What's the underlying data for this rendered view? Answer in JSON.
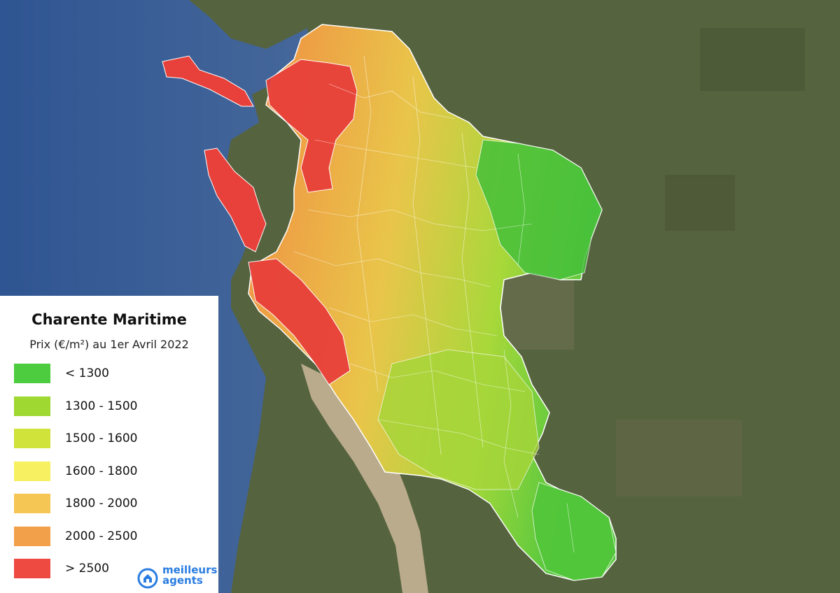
{
  "legend": {
    "title": "Charente Maritime",
    "subtitle": "Prix (€/m²) au 1er Avril 2022",
    "items": [
      {
        "label": "< 1300",
        "color": "#4ccc3e"
      },
      {
        "label": "1300 - 1500",
        "color": "#9ed830"
      },
      {
        "label": "1500 - 1600",
        "color": "#cfe33a"
      },
      {
        "label": "1600 - 1800",
        "color": "#f7f060"
      },
      {
        "label": "1800 - 2000",
        "color": "#f6c654"
      },
      {
        "label": "2000 - 2500",
        "color": "#f2a04a"
      },
      {
        "label": "> 2500",
        "color": "#ee4a42"
      }
    ]
  },
  "brand": {
    "line1": "meilleurs",
    "line2": "agents",
    "color": "#2a7de1"
  },
  "map": {
    "ocean_color": "#3d5f8f",
    "land_color": "#4f5f3c",
    "estuary_color": "#b8a98a",
    "region": "Charente Maritime"
  }
}
